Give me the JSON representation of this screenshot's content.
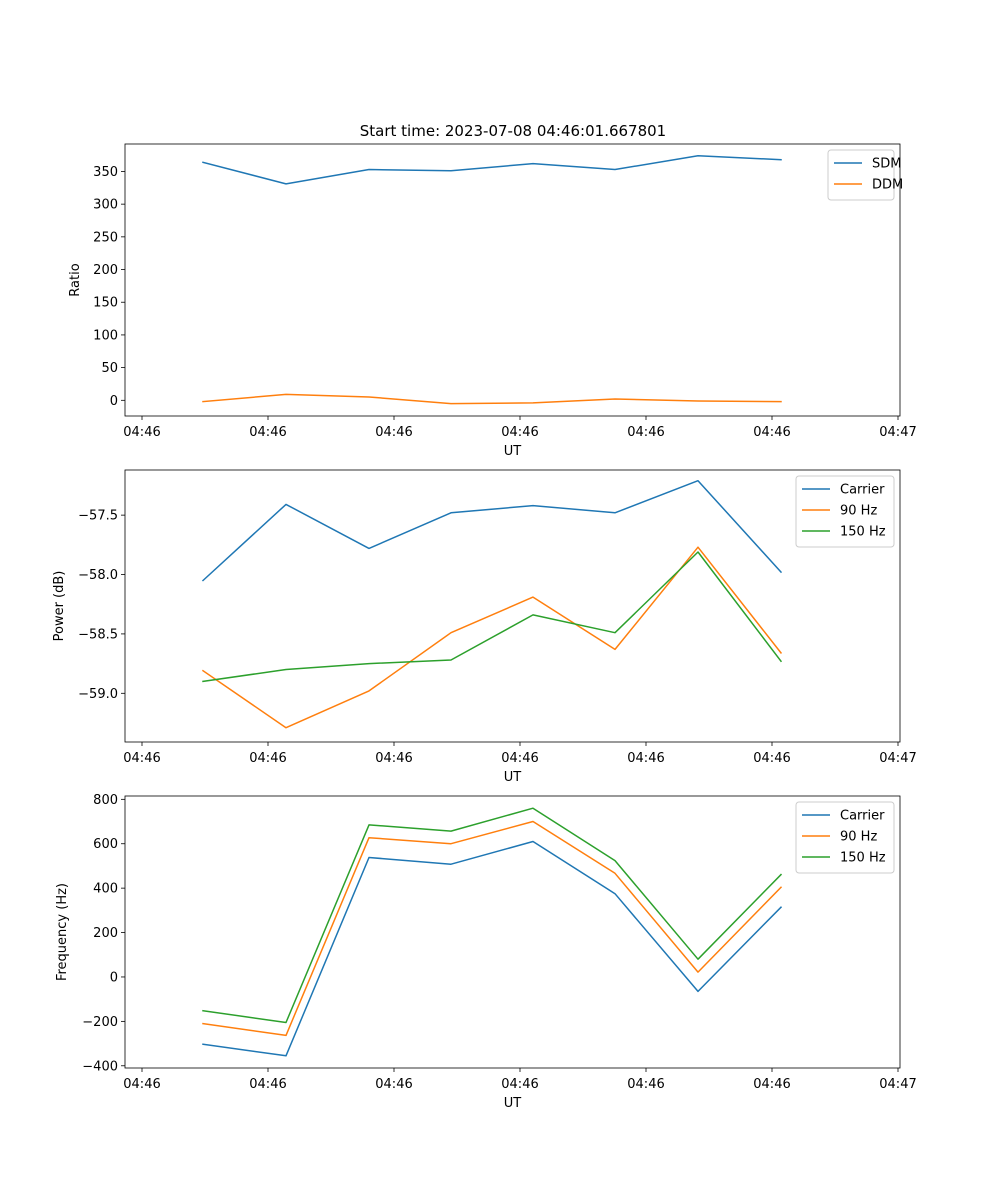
{
  "figure_title": "Start time: 2023-07-08 04:46:01.667801",
  "chart_data": [
    {
      "type": "line",
      "title": "Start time: 2023-07-08 04:46:01.667801",
      "xlabel": "UT",
      "ylabel": "Ratio",
      "x_tick_labels": [
        "04:46",
        "04:46",
        "04:46",
        "04:46",
        "04:46",
        "04:46",
        "04:47"
      ],
      "y_ticks": [
        0,
        50,
        100,
        150,
        200,
        250,
        300,
        350
      ],
      "y_tick_labels": [
        "0",
        "50",
        "100",
        "150",
        "200",
        "250",
        "300",
        "350"
      ],
      "ylim": [
        -24,
        392
      ],
      "legend_position": "top-right",
      "series": [
        {
          "name": "SDM",
          "color": "#1f77b4",
          "values": [
            364,
            331,
            353,
            351,
            362,
            353,
            374,
            368
          ]
        },
        {
          "name": "DDM",
          "color": "#ff7f0e",
          "values": [
            -2,
            9,
            5,
            -5,
            -4,
            2,
            -1,
            -2
          ]
        }
      ]
    },
    {
      "type": "line",
      "title": "",
      "xlabel": "UT",
      "ylabel": "Power (dB)",
      "x_tick_labels": [
        "04:46",
        "04:46",
        "04:46",
        "04:46",
        "04:46",
        "04:46",
        "04:47"
      ],
      "y_ticks": [
        -57.5,
        -58.0,
        -58.5,
        -59.0
      ],
      "y_tick_labels": [
        "−57.5",
        "−58.0",
        "−58.5",
        "−59.0"
      ],
      "ylim": [
        -59.41,
        -57.12
      ],
      "legend_position": "top-right",
      "series": [
        {
          "name": "Carrier",
          "color": "#1f77b4",
          "values": [
            -58.05,
            -57.41,
            -57.78,
            -57.48,
            -57.42,
            -57.48,
            -57.21,
            -57.98
          ]
        },
        {
          "name": "90 Hz",
          "color": "#ff7f0e",
          "values": [
            -58.81,
            -59.29,
            -58.98,
            -58.49,
            -58.19,
            -58.63,
            -57.77,
            -58.66
          ]
        },
        {
          "name": "150 Hz",
          "color": "#2ca02c",
          "values": [
            -58.9,
            -58.8,
            -58.75,
            -58.72,
            -58.34,
            -58.49,
            -57.81,
            -58.73
          ]
        }
      ]
    },
    {
      "type": "line",
      "title": "",
      "xlabel": "UT",
      "ylabel": "Frequency (Hz)",
      "x_tick_labels": [
        "04:46",
        "04:46",
        "04:46",
        "04:46",
        "04:46",
        "04:46",
        "04:47"
      ],
      "y_ticks": [
        -400,
        -200,
        0,
        200,
        400,
        600,
        800
      ],
      "y_tick_labels": [
        "−400",
        "−200",
        "0",
        "200",
        "400",
        "600",
        "800"
      ],
      "ylim": [
        -410,
        815
      ],
      "legend_position": "top-right",
      "series": [
        {
          "name": "Carrier",
          "color": "#1f77b4",
          "values": [
            -303,
            -355,
            538,
            508,
            610,
            375,
            -65,
            314
          ]
        },
        {
          "name": "90 Hz",
          "color": "#ff7f0e",
          "values": [
            -210,
            -263,
            627,
            600,
            700,
            467,
            22,
            404
          ]
        },
        {
          "name": "150 Hz",
          "color": "#2ca02c",
          "values": [
            -152,
            -205,
            685,
            657,
            760,
            524,
            80,
            461
          ]
        }
      ]
    }
  ]
}
